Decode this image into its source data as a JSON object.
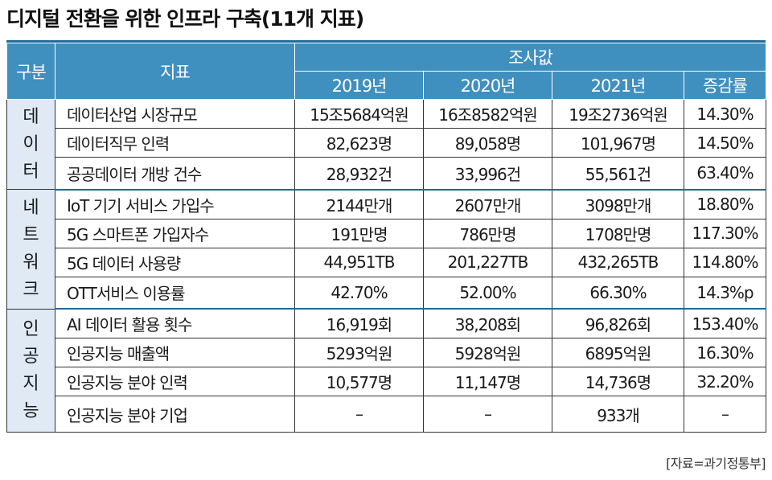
{
  "title": "디지털 전환을 위한 인프라 구축(11개 지표)",
  "header": {
    "group": "구분",
    "indicator": "지표",
    "values_label": "조사값",
    "years": [
      "2019년",
      "2020년",
      "2021년"
    ],
    "growth": "증감률"
  },
  "groups": [
    {
      "label": [
        "데",
        "이",
        "터"
      ],
      "rows": [
        {
          "indicator": "데이터산업 시장규모",
          "values": [
            "15조5684억원",
            "16조8582억원",
            "19조2736억원"
          ],
          "growth": "14.30%"
        },
        {
          "indicator": "데이터직무 인력",
          "values": [
            "82,623명",
            "89,058명",
            "101,967명"
          ],
          "growth": "14.50%"
        },
        {
          "indicator": "공공데이터 개방 건수",
          "values": [
            "28,932건",
            "33,996건",
            "55,561건"
          ],
          "growth": "63.40%"
        }
      ]
    },
    {
      "label": [
        "네",
        "트",
        "워",
        "크"
      ],
      "rows": [
        {
          "indicator": "IoT 기기 서비스 가입수",
          "values": [
            "2144만개",
            "2607만개",
            "3098만개"
          ],
          "growth": "18.80%"
        },
        {
          "indicator": "5G 스마트폰 가입자수",
          "values": [
            "191만명",
            "786만명",
            "1708만명"
          ],
          "growth": "117.30%"
        },
        {
          "indicator": "5G 데이터 사용량",
          "values": [
            "44,951TB",
            "201,227TB",
            "432,265TB"
          ],
          "growth": "114.80%"
        },
        {
          "indicator": "OTT서비스 이용률",
          "values": [
            "42.70%",
            "52.00%",
            "66.30%"
          ],
          "growth": "14.3%p"
        }
      ]
    },
    {
      "label": [
        "인",
        "공",
        "지",
        "능"
      ],
      "rows": [
        {
          "indicator": "AI 데이터 활용 횟수",
          "values": [
            "16,919회",
            "38,208회",
            "96,826회"
          ],
          "growth": "153.40%"
        },
        {
          "indicator": "인공지능 매출액",
          "values": [
            "5293억원",
            "5928억원",
            "6895억원"
          ],
          "growth": "16.30%"
        },
        {
          "indicator": "인공지능 분야 인력",
          "values": [
            "10,577명",
            "11,147명",
            "14,736명"
          ],
          "growth": "32.20%"
        },
        {
          "indicator": "인공지능 분야 기업",
          "values": [
            "–",
            "–",
            "933개"
          ],
          "growth": "–"
        }
      ]
    }
  ],
  "source": "[자료=과기정통부]"
}
